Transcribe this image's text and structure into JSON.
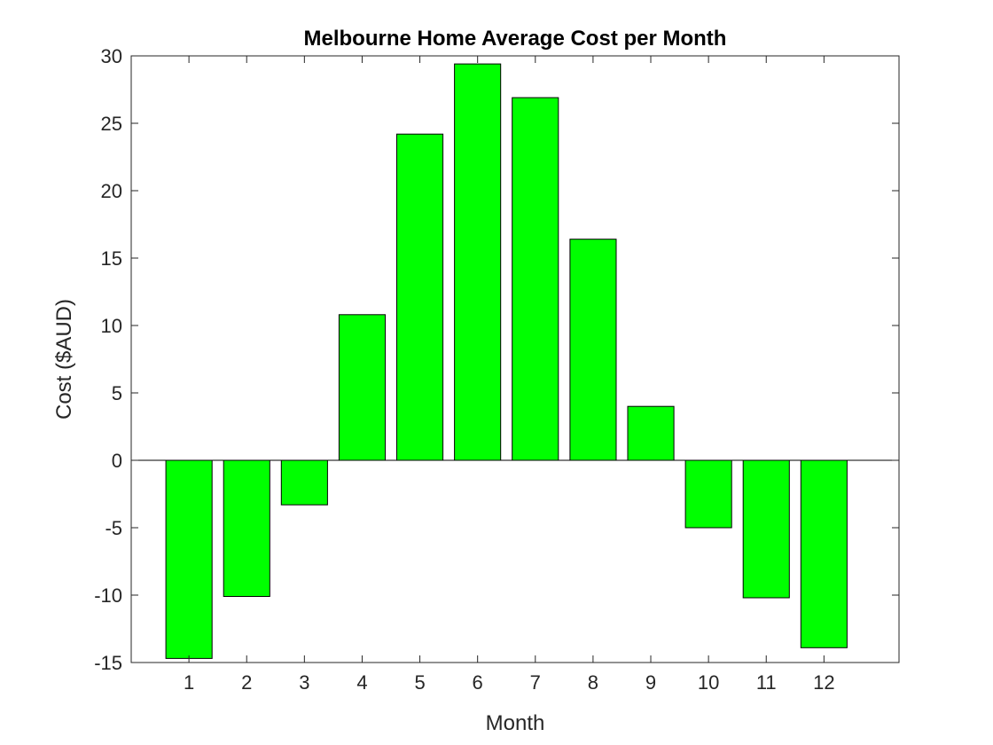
{
  "chart_data": {
    "type": "bar",
    "title": "Melbourne Home Average Cost per Month",
    "xlabel": "Month",
    "ylabel": "Cost ($AUD)",
    "categories": [
      "1",
      "2",
      "3",
      "4",
      "5",
      "6",
      "7",
      "8",
      "9",
      "10",
      "11",
      "12"
    ],
    "values": [
      -14.7,
      -10.1,
      -3.3,
      10.8,
      24.2,
      29.4,
      26.9,
      16.4,
      4.0,
      -5.0,
      -10.2,
      -13.9
    ],
    "ylim": [
      -15,
      30
    ],
    "yticks": [
      -15,
      -10,
      -5,
      0,
      5,
      10,
      15,
      20,
      25,
      30
    ],
    "ytick_labels": [
      "-15",
      "-10",
      "-5",
      "0",
      "5",
      "10",
      "15",
      "20",
      "25",
      "30"
    ],
    "xlim": [
      0,
      13.3
    ],
    "bar_color": "#00ff00",
    "bar_edge_color": "#000000",
    "grid": false,
    "legend": "none"
  }
}
